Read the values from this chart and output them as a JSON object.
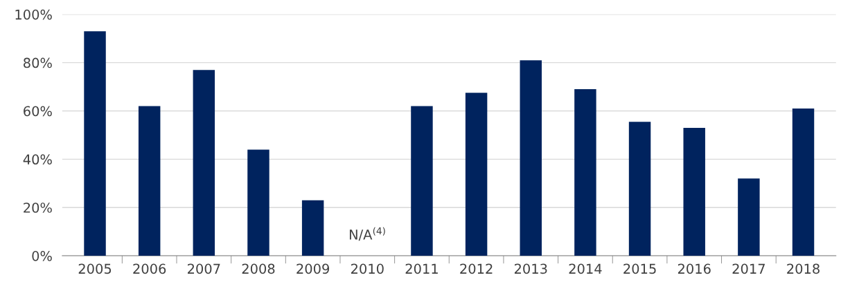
{
  "chart_data": {
    "type": "bar",
    "categories": [
      "2005",
      "2006",
      "2007",
      "2008",
      "2009",
      "2010",
      "2011",
      "2012",
      "2013",
      "2014",
      "2015",
      "2016",
      "2017",
      "2018"
    ],
    "values": [
      93,
      62,
      77,
      44,
      23,
      null,
      62,
      67.5,
      81,
      69,
      55.5,
      53,
      32,
      61
    ],
    "color": "#00235e",
    "ylim": [
      0,
      100
    ],
    "yticks": [
      {
        "value": 0,
        "label": "0%"
      },
      {
        "value": 20,
        "label": "20%"
      },
      {
        "value": 40,
        "label": "40%"
      },
      {
        "value": 60,
        "label": "60%"
      },
      {
        "value": 80,
        "label": "80%"
      },
      {
        "value": 100,
        "label": "100%"
      }
    ],
    "grid": "y",
    "annotations": [
      "N/A$^{(4)}$"
    ]
  }
}
